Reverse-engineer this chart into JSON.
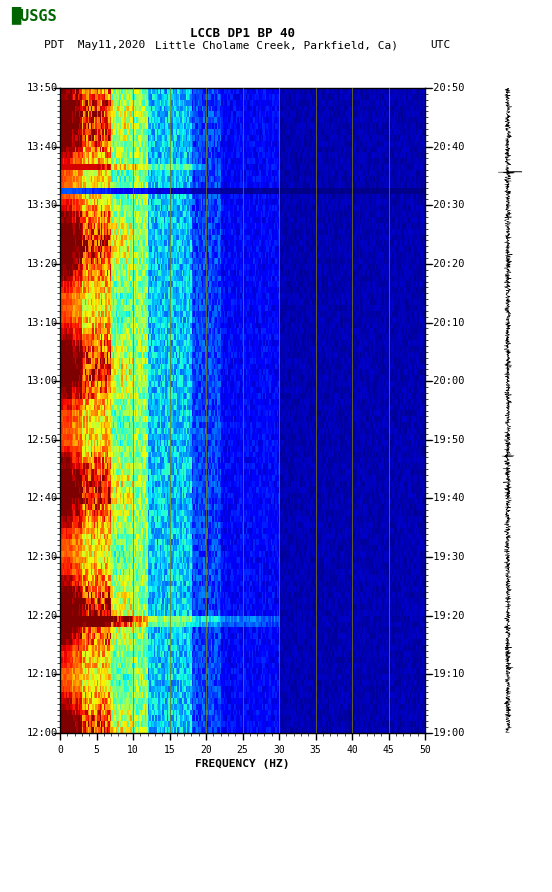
{
  "title_line1": "LCCB DP1 BP 40",
  "title_line2_pdt": "PDT  May11,2020",
  "title_line2_loc": "Little Cholame Creek, Parkfield, Ca)",
  "title_line2_utc": "UTC",
  "xlabel": "FREQUENCY (HZ)",
  "freq_min": 0,
  "freq_max": 50,
  "left_time_labels": [
    "12:00",
    "12:10",
    "12:20",
    "12:30",
    "12:40",
    "12:50",
    "13:00",
    "13:10",
    "13:20",
    "13:30",
    "13:40",
    "13:50"
  ],
  "right_time_labels": [
    "19:00",
    "19:10",
    "19:20",
    "19:30",
    "19:40",
    "19:50",
    "20:00",
    "20:10",
    "20:20",
    "20:30",
    "20:40",
    "20:50"
  ],
  "freq_ticks": [
    0,
    5,
    10,
    15,
    20,
    25,
    30,
    35,
    40,
    45,
    50
  ],
  "vertical_lines_freq": [
    10,
    15,
    20,
    25,
    30,
    35,
    40,
    45
  ],
  "n_time": 110,
  "n_freq": 250,
  "usgs_color": "#006400"
}
